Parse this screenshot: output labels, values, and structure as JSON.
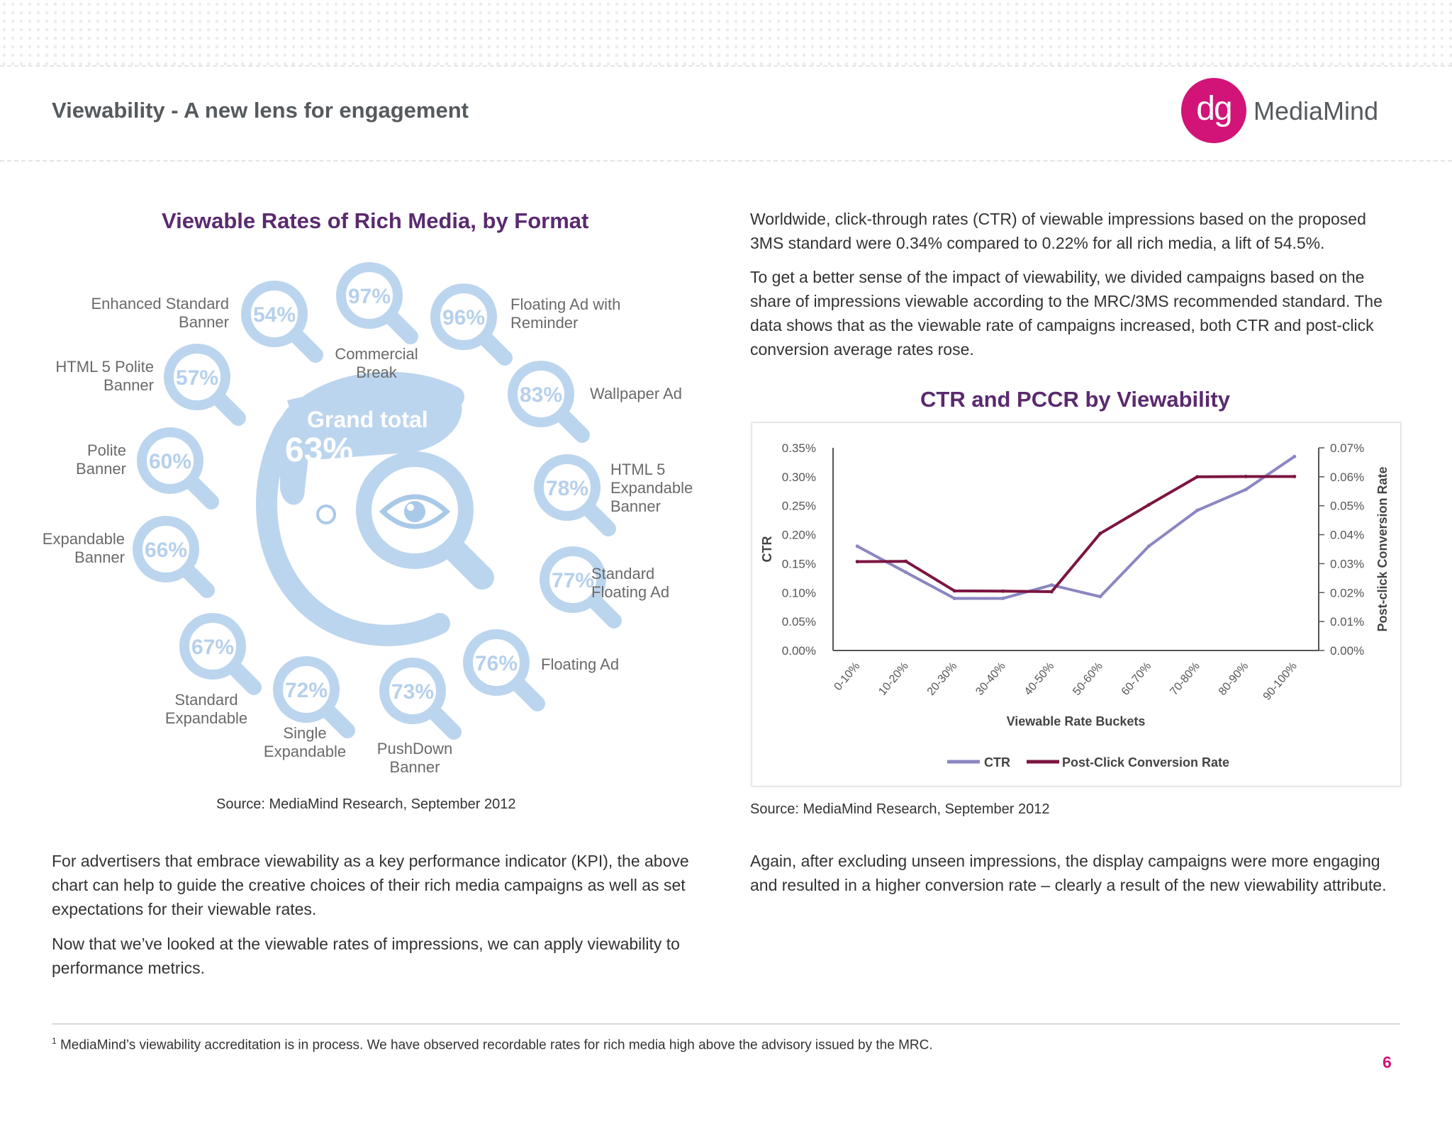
{
  "page": {
    "title": "Viewability - A new lens for engagement",
    "page_number": "6",
    "footnote_mark": "1",
    "footnote": "MediaMind’s viewability accreditation is in process. We have observed recordable rates for rich media high above the advisory issued by the MRC."
  },
  "logo": {
    "mark": "dg",
    "name": "MediaMind",
    "color": "#d21378"
  },
  "left": {
    "title": "Viewable Rates of Rich Media, by Format",
    "grand_total_label": "Grand total",
    "grand_total_value": "63%",
    "formats": [
      {
        "label_lines": [
          "Enhanced Standard",
          "Banner"
        ],
        "value": "54%"
      },
      {
        "label_lines": [
          "HTML 5 Polite",
          "Banner"
        ],
        "value": "57%"
      },
      {
        "label_lines": [
          "Polite",
          "Banner"
        ],
        "value": "60%"
      },
      {
        "label_lines": [
          "Expandable",
          "Banner"
        ],
        "value": "66%"
      },
      {
        "label_lines": [
          "Standard",
          "Expandable"
        ],
        "value": "67%"
      },
      {
        "label_lines": [
          "Single",
          "Expandable"
        ],
        "value": "72%"
      },
      {
        "label_lines": [
          "PushDown",
          "Banner"
        ],
        "value": "73%"
      },
      {
        "label_lines": [
          "Floating Ad"
        ],
        "value": "76%"
      },
      {
        "label_lines": [
          "Standard",
          "Floating Ad"
        ],
        "value": "77%"
      },
      {
        "label_lines": [
          "HTML 5",
          "Expandable",
          "Banner"
        ],
        "value": "78%"
      },
      {
        "label_lines": [
          "Wallpaper Ad"
        ],
        "value": "83%"
      },
      {
        "label_lines": [
          "Floating Ad with",
          "Reminder"
        ],
        "value": "96%"
      },
      {
        "label_lines": [
          "Commercial",
          "Break"
        ],
        "value": "97%"
      }
    ],
    "source": "Source:  MediaMind Research, September 2012",
    "para1": "For advertisers that embrace viewability as a key performance indicator (KPI), the above chart can help to guide the creative choices of their rich media campaigns as well as set expectations for their viewable rates.",
    "para2": "Now that we’ve looked at the viewable rates of impressions, we can apply viewability to performance metrics."
  },
  "right": {
    "para1": "Worldwide, click-through rates (CTR) of viewable impressions based on the proposed 3MS standard were 0.34% compared to 0.22% for all rich media, a lift of 54.5%.",
    "para2": "To get a better sense of the impact of viewability, we divided campaigns based on the share of impressions viewable according to the MRC/3MS recommended standard. The data shows that as the viewable rate of campaigns increased, both CTR and post-click conversion average rates rose.",
    "chart_title": "CTR and PCCR by Viewability",
    "source": "Source:  MediaMind Research, September 2012",
    "para3": "Again, after excluding unseen impressions, the display campaigns were more engaging and resulted in a higher conversion rate – clearly a result of the new viewability attribute."
  },
  "chart_data": {
    "type": "line",
    "title": "CTR and PCCR by Viewability",
    "xlabel": "Viewable Rate Buckets",
    "ylabel": "CTR",
    "y2label": "Post-click Conversion Rate",
    "categories": [
      "0-10%",
      "10-20%",
      "20-30%",
      "30-40%",
      "40-50%",
      "50-60%",
      "60-70%",
      "70-80%",
      "80-90%",
      "90-100%"
    ],
    "ylim": [
      0,
      0.35
    ],
    "y_ticks": [
      "0.00%",
      "0.05%",
      "0.10%",
      "0.15%",
      "0.20%",
      "0.25%",
      "0.30%",
      "0.35%"
    ],
    "y2lim": [
      0,
      0.07
    ],
    "y2_ticks": [
      "0.00%",
      "0.01%",
      "0.02%",
      "0.03%",
      "0.04%",
      "0.05%",
      "0.06%",
      "0.07%"
    ],
    "series": [
      {
        "name": "CTR",
        "axis": "left",
        "color": "#8b86c2",
        "values": [
          0.18,
          0.135,
          0.09,
          0.09,
          0.113,
          0.093,
          0.18,
          0.242,
          0.278,
          0.335
        ]
      },
      {
        "name": "Post-Click Conversion Rate",
        "axis": "right",
        "color": "#7c1541",
        "values": [
          0.0307,
          0.0308,
          0.0206,
          0.0205,
          0.0203,
          0.0404,
          0.0503,
          0.06,
          0.0601,
          0.0601
        ]
      }
    ],
    "legend": "bottom"
  }
}
